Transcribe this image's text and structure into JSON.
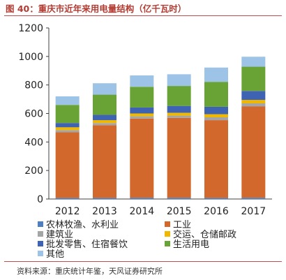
{
  "header": {
    "title": "图 40：重庆市近年来用电量结构（亿千瓦时）"
  },
  "footer": {
    "source": "资料来源：重庆统计年鉴，天风证券研究所"
  },
  "colors": {
    "agriculture": "#4f7fbf",
    "industry": "#d2682b",
    "construction": "#a5a5a5",
    "transport": "#f0b800",
    "retail": "#3e63b2",
    "residential": "#6aa335",
    "other": "#9dc3e6"
  },
  "chart_data": {
    "type": "bar",
    "stacked": true,
    "categories": [
      "2012",
      "2013",
      "2014",
      "2015",
      "2016",
      "2017"
    ],
    "ylim": [
      0,
      1200
    ],
    "yticks": [
      0,
      200,
      400,
      600,
      800,
      1000,
      1200
    ],
    "grid": false,
    "legend_position": "bottom",
    "series": [
      {
        "key": "agriculture",
        "name": "农林牧渔、水利业",
        "values": [
          8,
          8,
          9,
          9,
          8,
          9
        ]
      },
      {
        "key": "industry",
        "name": "工业",
        "values": [
          460,
          510,
          555,
          560,
          545,
          640
        ]
      },
      {
        "key": "construction",
        "name": "建筑业",
        "values": [
          15,
          15,
          16,
          16,
          20,
          22
        ]
      },
      {
        "key": "transport",
        "name": "交运、仓储邮政",
        "values": [
          20,
          20,
          20,
          20,
          22,
          24
        ]
      },
      {
        "key": "retail",
        "name": "批发零售、住宿餐饮",
        "values": [
          30,
          37,
          42,
          48,
          52,
          63
        ]
      },
      {
        "key": "residential",
        "name": "生活用电",
        "values": [
          127,
          142,
          145,
          140,
          175,
          170
        ]
      },
      {
        "key": "other",
        "name": "其他",
        "values": [
          60,
          80,
          80,
          82,
          100,
          70
        ]
      }
    ]
  }
}
